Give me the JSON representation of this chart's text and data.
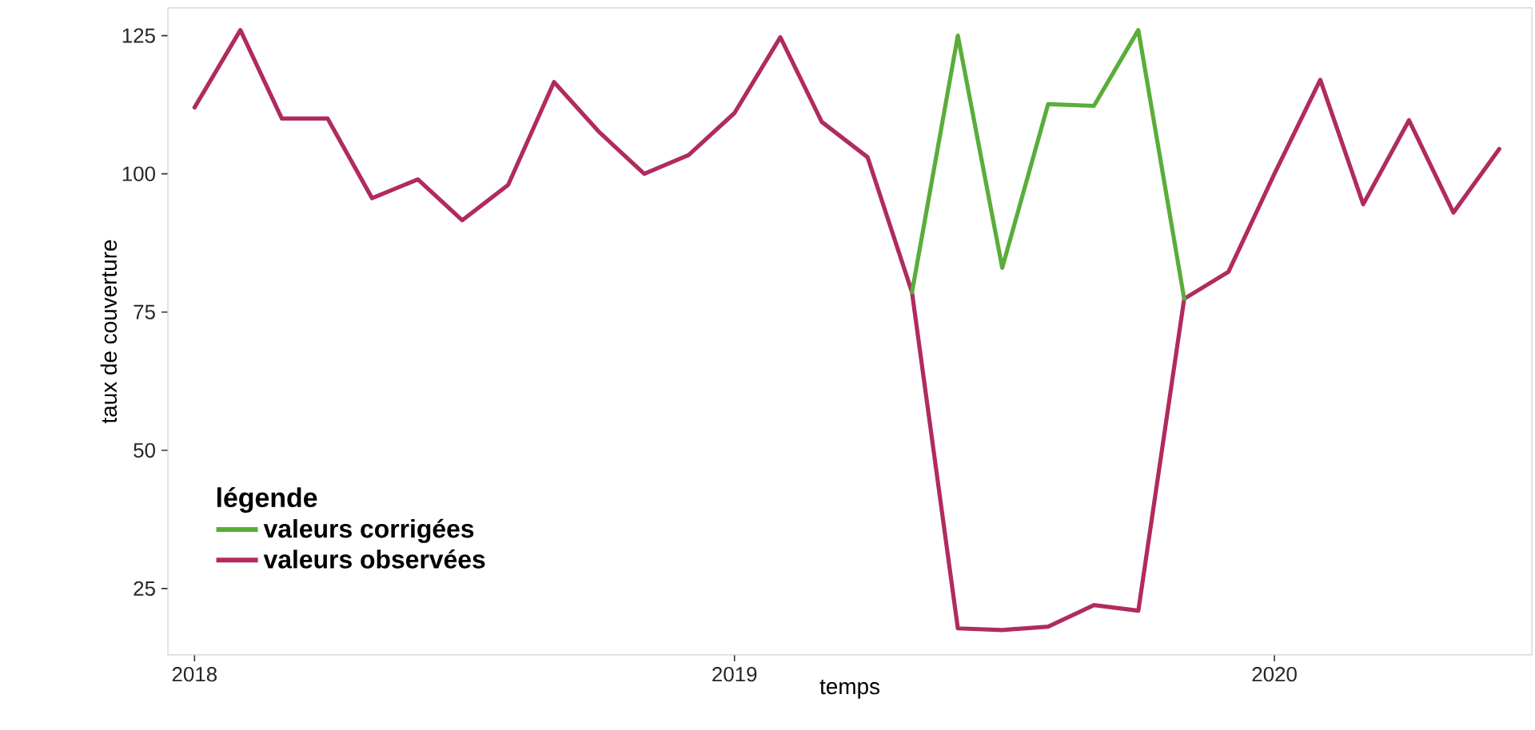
{
  "chart_data": {
    "type": "line",
    "xlabel": "temps",
    "ylabel": "taux de couverture",
    "legend_title": "légende",
    "legend": "bottom left",
    "series": [
      {
        "name": "valeurs corrigées",
        "color": "#5aad3a",
        "x": [
          "2019-05",
          "2019-06",
          "2019-07",
          "2019-08",
          "2019-09",
          "2019-10",
          "2019-11"
        ],
        "values": [
          78.6,
          125,
          83,
          112.6,
          112.3,
          126,
          77.4
        ]
      },
      {
        "name": "valeurs observées",
        "color": "#b02b5f",
        "x": [
          "2018-01",
          "2018-02",
          "2018-03",
          "2018-04",
          "2018-05",
          "2018-06",
          "2018-07",
          "2018-08",
          "2018-09",
          "2018-10",
          "2018-11",
          "2018-12",
          "2019-01",
          "2019-02",
          "2019-03",
          "2019-04",
          "2019-05",
          "2019-06",
          "2019-07",
          "2019-08",
          "2019-09",
          "2019-10",
          "2019-11",
          "2019-12",
          "2020-01",
          "2020-02",
          "2020-03",
          "2020-04",
          "2020-05",
          "2020-06"
        ],
        "values": [
          112,
          126,
          110,
          110,
          95.6,
          99,
          91.6,
          98,
          116.6,
          107.7,
          100,
          103.4,
          111,
          124.7,
          109.4,
          103,
          78.6,
          17.8,
          17.5,
          18.1,
          22,
          21,
          77.4,
          82.3,
          100,
          117,
          94.5,
          109.7,
          93,
          104.5
        ]
      }
    ],
    "xlim": [
      "2017-12-14",
      "2020-06-23"
    ],
    "xticks": [
      "2018",
      "2019",
      "2020"
    ],
    "ylim": [
      13,
      130
    ],
    "yticks": [
      25,
      50,
      75,
      100,
      125
    ],
    "grid": false,
    "line_style": "solid"
  }
}
